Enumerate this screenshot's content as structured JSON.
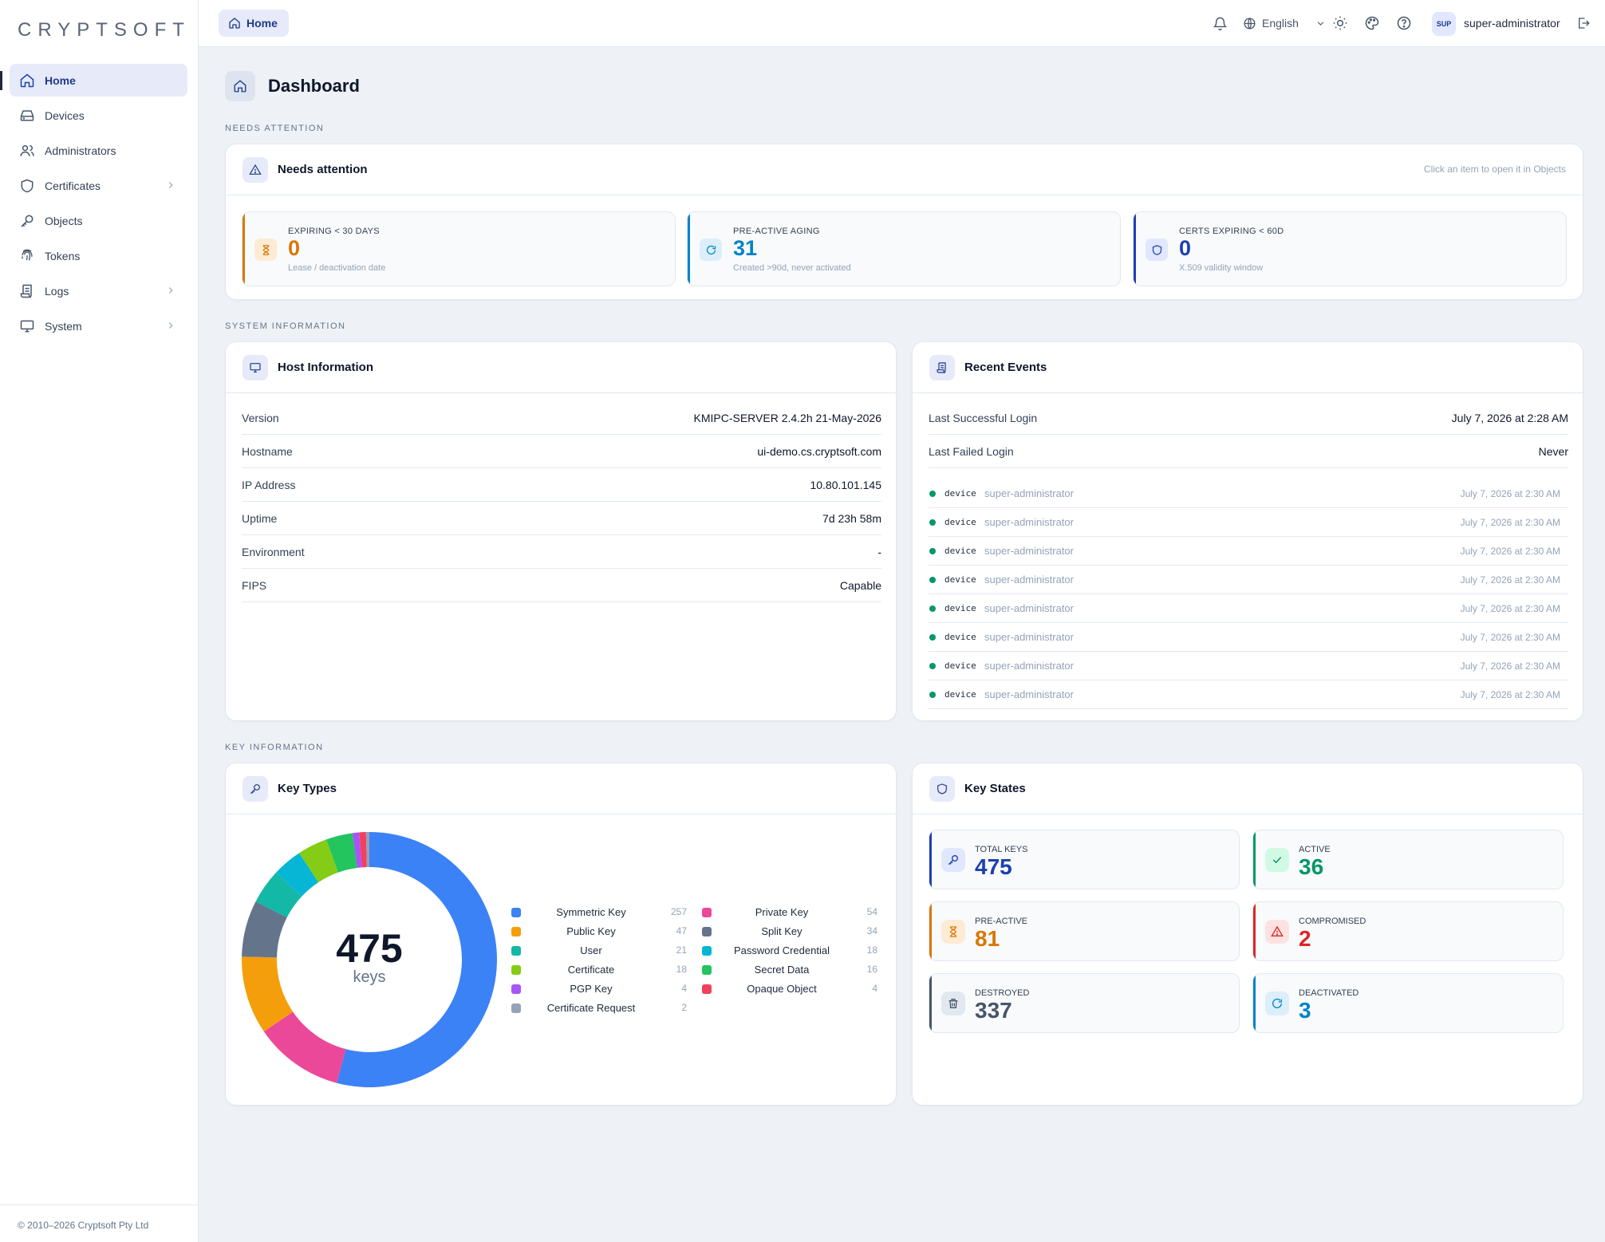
{
  "app": {
    "brand": "CRYPTSOFT",
    "copyright": "© 2010–2026 Cryptsoft Pty Ltd"
  },
  "sidebar": {
    "items": [
      {
        "label": "Home"
      },
      {
        "label": "Devices"
      },
      {
        "label": "Administrators"
      },
      {
        "label": "Certificates"
      },
      {
        "label": "Objects"
      },
      {
        "label": "Tokens"
      },
      {
        "label": "Logs"
      },
      {
        "label": "System"
      }
    ]
  },
  "topbar": {
    "breadcrumb": "Home",
    "language": "English",
    "avatar_initials": "SUP",
    "username": "super-administrator"
  },
  "page": {
    "title": "Dashboard"
  },
  "sections": {
    "needs_attention": "NEEDS ATTENTION",
    "system_information": "SYSTEM INFORMATION",
    "key_information": "KEY INFORMATION"
  },
  "attention": {
    "title": "Needs attention",
    "hint": "Click an item to open it in Objects",
    "items": [
      {
        "label": "EXPIRING < 30 DAYS",
        "value": "0",
        "sub": "Lease / deactivation date",
        "color": "#d97706"
      },
      {
        "label": "PRE-ACTIVE AGING",
        "value": "31",
        "sub": "Created >90d, never activated",
        "color": "#0284c7"
      },
      {
        "label": "CERTS EXPIRING < 60D",
        "value": "0",
        "sub": "X.509 validity window",
        "color": "#1e40af"
      }
    ]
  },
  "host": {
    "title": "Host Information",
    "rows": [
      {
        "k": "Version",
        "v": "KMIPC-SERVER 2.4.2h 21-May-2026"
      },
      {
        "k": "Hostname",
        "v": "ui-demo.cs.cryptsoft.com"
      },
      {
        "k": "IP Address",
        "v": "10.80.101.145"
      },
      {
        "k": "Uptime",
        "v": "7d 23h 58m"
      },
      {
        "k": "Environment",
        "v": "-"
      },
      {
        "k": "FIPS",
        "v": "Capable"
      }
    ]
  },
  "events": {
    "title": "Recent Events",
    "last_login_label": "Last Successful Login",
    "last_login": "July 7, 2026 at 2:28 AM",
    "failed_login_label": "Last Failed Login",
    "failed_login": "Never",
    "list": [
      {
        "type": "device",
        "user": "super-administrator",
        "time": "July 7, 2026 at 2:30 AM"
      },
      {
        "type": "device",
        "user": "super-administrator",
        "time": "July 7, 2026 at 2:30 AM"
      },
      {
        "type": "device",
        "user": "super-administrator",
        "time": "July 7, 2026 at 2:30 AM"
      },
      {
        "type": "device",
        "user": "super-administrator",
        "time": "July 7, 2026 at 2:30 AM"
      },
      {
        "type": "device",
        "user": "super-administrator",
        "time": "July 7, 2026 at 2:30 AM"
      },
      {
        "type": "device",
        "user": "super-administrator",
        "time": "July 7, 2026 at 2:30 AM"
      },
      {
        "type": "device",
        "user": "super-administrator",
        "time": "July 7, 2026 at 2:30 AM"
      },
      {
        "type": "device",
        "user": "super-administrator",
        "time": "July 7, 2026 at 2:30 AM"
      }
    ]
  },
  "key_types": {
    "title": "Key Types",
    "total": "475",
    "total_label": "keys",
    "items": [
      {
        "name": "Symmetric Key",
        "count": 257,
        "color": "#3b82f6"
      },
      {
        "name": "Private Key",
        "count": 54,
        "color": "#ec4899"
      },
      {
        "name": "Public Key",
        "count": 47,
        "color": "#f59e0b"
      },
      {
        "name": "Split Key",
        "count": 34,
        "color": "#64748b"
      },
      {
        "name": "User",
        "count": 21,
        "color": "#14b8a6"
      },
      {
        "name": "Password Credential",
        "count": 18,
        "color": "#06b6d4"
      },
      {
        "name": "Certificate",
        "count": 18,
        "color": "#84cc16"
      },
      {
        "name": "Secret Data",
        "count": 16,
        "color": "#22c55e"
      },
      {
        "name": "PGP Key",
        "count": 4,
        "color": "#a855f7"
      },
      {
        "name": "Opaque Object",
        "count": 4,
        "color": "#f43f5e"
      },
      {
        "name": "Certificate Request",
        "count": 2,
        "color": "#94a3b8"
      }
    ]
  },
  "key_states": {
    "title": "Key States",
    "items": [
      {
        "label": "TOTAL KEYS",
        "value": "475",
        "color": "#1e40af",
        "icon": "key-icon"
      },
      {
        "label": "ACTIVE",
        "value": "36",
        "color": "#059669",
        "icon": "check-icon"
      },
      {
        "label": "PRE-ACTIVE",
        "value": "81",
        "color": "#d97706",
        "icon": "hourglass-icon"
      },
      {
        "label": "COMPROMISED",
        "value": "2",
        "color": "#dc2626",
        "icon": "warning-icon"
      },
      {
        "label": "DESTROYED",
        "value": "337",
        "color": "#475569",
        "icon": "trash-icon"
      },
      {
        "label": "DEACTIVATED",
        "value": "3",
        "color": "#0284c7",
        "icon": "refresh-icon"
      }
    ]
  }
}
